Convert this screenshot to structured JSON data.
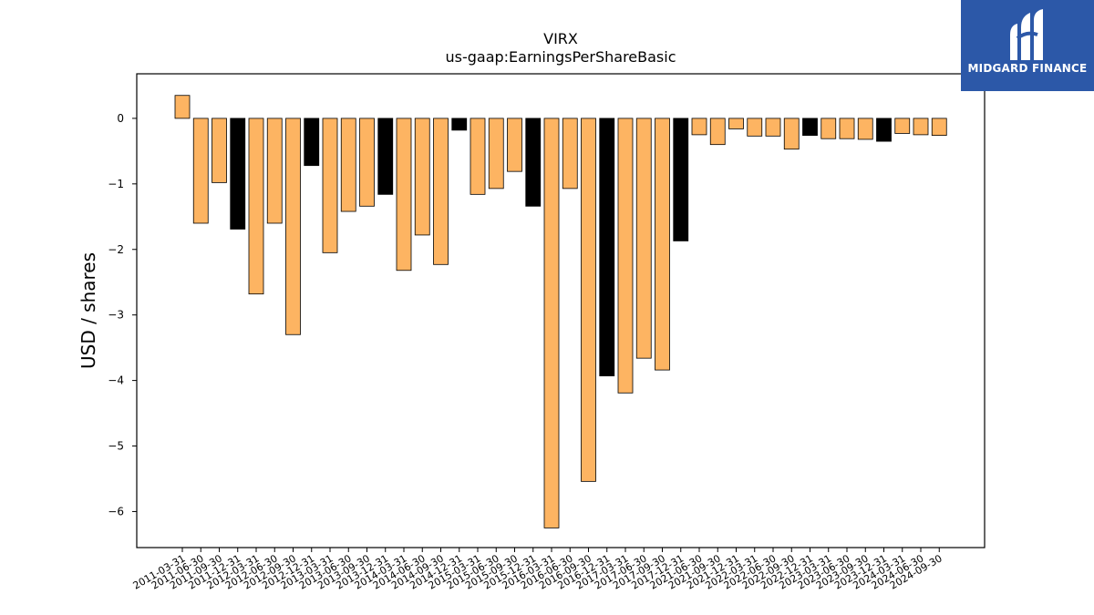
{
  "logo": {
    "name": "MIDGARD FINANCE",
    "background": "#2c58a8"
  },
  "chart_data": {
    "type": "bar",
    "title": "VIRX",
    "subtitle": "us-gaap:EarningsPerShareBasic",
    "xlabel": "",
    "ylabel": "USD / shares",
    "ylim": [
      -6.55,
      0.68
    ],
    "yticks": [
      0,
      -1,
      -2,
      -3,
      -4,
      -5,
      -6
    ],
    "grid": false,
    "colors": {
      "quarter": "#fdb462",
      "annual": "#000000",
      "edge": "#000000"
    },
    "categories": [
      "2011-03-31",
      "2011-06-30",
      "2011-09-30",
      "2011-12-31",
      "2012-03-31",
      "2012-06-30",
      "2012-09-30",
      "2012-12-31",
      "2013-03-31",
      "2013-06-30",
      "2013-09-30",
      "2013-12-31",
      "2014-03-31",
      "2014-06-30",
      "2014-09-30",
      "2014-12-31",
      "2015-03-31",
      "2015-06-30",
      "2015-09-30",
      "2015-12-31",
      "2016-03-31",
      "2016-06-30",
      "2016-09-30",
      "2016-12-31",
      "2017-03-31",
      "2017-06-30",
      "2017-09-30",
      "2017-12-31",
      "2021-06-30",
      "2021-09-30",
      "2021-12-31",
      "2022-03-31",
      "2022-06-30",
      "2022-09-30",
      "2022-12-31",
      "2023-03-31",
      "2023-06-30",
      "2023-09-30",
      "2023-12-31",
      "2024-03-31",
      "2024-06-30",
      "2024-09-30"
    ],
    "values": [
      0.35,
      -1.6,
      -0.98,
      -1.69,
      -2.68,
      -1.6,
      -3.3,
      -0.72,
      -2.05,
      -1.42,
      -1.34,
      -1.16,
      -2.32,
      -1.78,
      -2.23,
      -0.18,
      -1.16,
      -1.07,
      -0.81,
      -1.34,
      -6.25,
      -1.07,
      -5.54,
      -3.93,
      -4.19,
      -3.66,
      -3.84,
      -1.87,
      -0.25,
      -0.4,
      -0.16,
      -0.27,
      -0.27,
      -0.47,
      -0.26,
      -0.31,
      -0.31,
      -0.32,
      -0.35,
      -0.23,
      -0.25,
      -0.26
    ],
    "annual": [
      false,
      false,
      false,
      true,
      false,
      false,
      false,
      true,
      false,
      false,
      false,
      true,
      false,
      false,
      false,
      true,
      false,
      false,
      false,
      true,
      false,
      false,
      false,
      true,
      false,
      false,
      false,
      true,
      false,
      false,
      false,
      false,
      false,
      false,
      true,
      false,
      false,
      false,
      true,
      false,
      false,
      false
    ]
  }
}
